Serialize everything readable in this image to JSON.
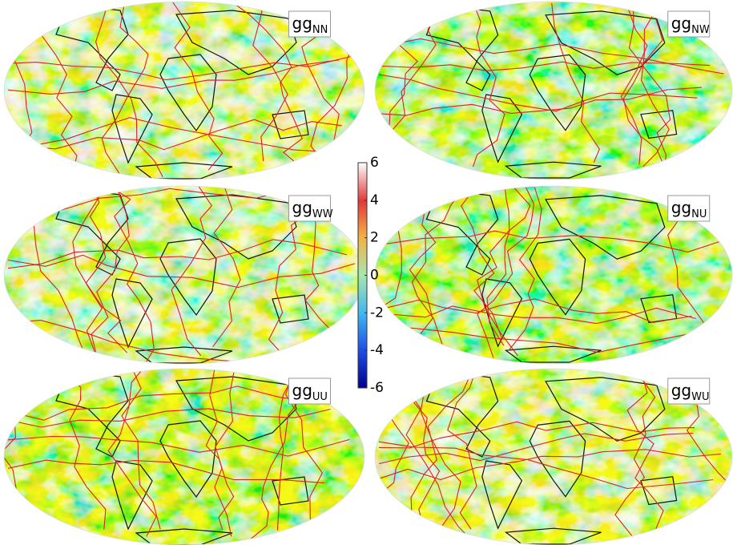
{
  "panels": [
    {
      "label": "gg",
      "subscript": "NN"
    },
    {
      "label": "gg",
      "subscript": "NW"
    },
    {
      "label": "gg",
      "subscript": "WW"
    },
    {
      "label": "gg",
      "subscript": "NU"
    },
    {
      "label": "gg",
      "subscript": "UU"
    },
    {
      "label": "gg",
      "subscript": "WU"
    }
  ],
  "colorbar": {
    "range": [
      -6,
      6
    ],
    "ticks": [
      6,
      4,
      2,
      0,
      -2,
      -4,
      -6
    ]
  }
}
